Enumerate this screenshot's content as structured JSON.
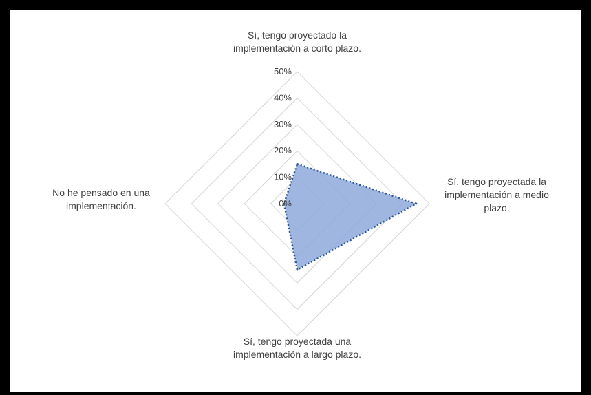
{
  "chart_data": {
    "type": "radar",
    "title": "",
    "categories": [
      "Sí, tengo proyectado la implementación a corto plazo.",
      "Sí, tengo proyectada la implementación a medio plazo.",
      "Sí, tengo proyectada una implementación a largo plazo.",
      "No he pensado en una implementación."
    ],
    "category_lines": [
      [
        "Sí, tengo proyectado la",
        "implementación a corto plazo."
      ],
      [
        "Sí, tengo proyectada la",
        "implementación a medio",
        "plazo."
      ],
      [
        "Sí, tengo proyectada una",
        "implementación a largo plazo."
      ],
      [
        "No he pensado en una",
        "implementación."
      ]
    ],
    "series": [
      {
        "values": [
          15,
          45,
          25,
          5
        ]
      }
    ],
    "rmax": 50,
    "ticks": [
      "0%",
      "10%",
      "20%",
      "30%",
      "40%",
      "50%"
    ],
    "grid": true,
    "fill_color": "#8ea9db",
    "line_color": "#2f5597",
    "grid_color": "#d9d9d9"
  }
}
